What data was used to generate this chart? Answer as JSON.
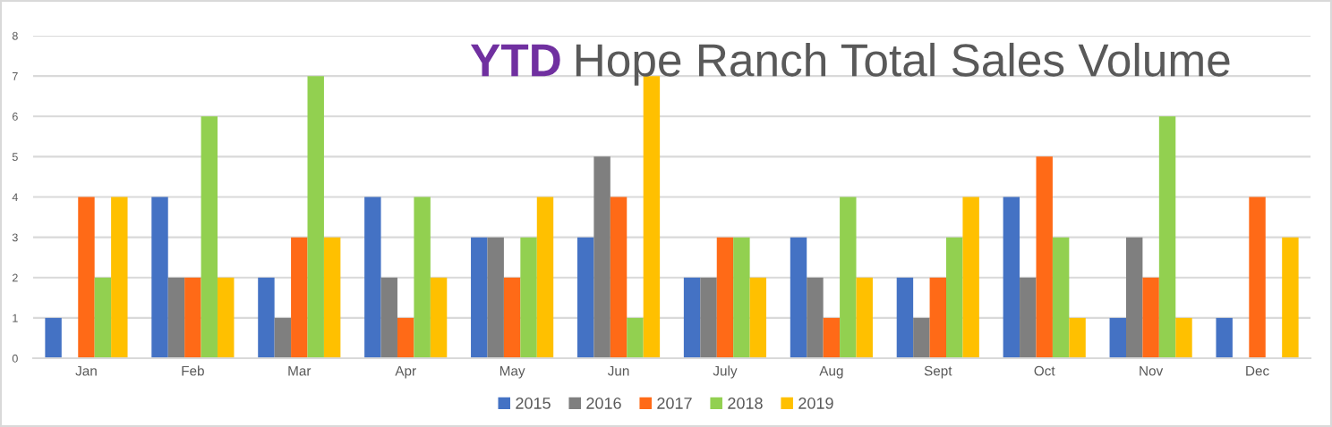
{
  "chart_data": {
    "type": "bar",
    "title": "YTD Hope Ranch Total Sales Volume",
    "categories": [
      "Jan",
      "Feb",
      "Mar",
      "Apr",
      "May",
      "Jun",
      "July",
      "Aug",
      "Sept",
      "Oct",
      "Nov",
      "Dec"
    ],
    "series": [
      {
        "name": "2015",
        "color": "#4472c4",
        "values": [
          1,
          4,
          2,
          4,
          3,
          3,
          2,
          3,
          2,
          4,
          1,
          1
        ]
      },
      {
        "name": "2016",
        "color": "#7f7f7f",
        "values": [
          0,
          2,
          1,
          2,
          3,
          5,
          2,
          2,
          1,
          2,
          3,
          0
        ]
      },
      {
        "name": "2017",
        "color": "#ff6a17",
        "values": [
          4,
          2,
          3,
          1,
          2,
          4,
          3,
          1,
          2,
          5,
          2,
          4
        ]
      },
      {
        "name": "2018",
        "color": "#92d050",
        "values": [
          2,
          6,
          7,
          4,
          3,
          1,
          3,
          4,
          3,
          3,
          6,
          0
        ]
      },
      {
        "name": "2019",
        "color": "#ffc000",
        "values": [
          4,
          2,
          3,
          2,
          4,
          7,
          2,
          2,
          4,
          1,
          1,
          3
        ]
      }
    ],
    "ylim": [
      0,
      8
    ],
    "yticks": [
      0,
      1,
      2,
      3,
      4,
      5,
      6,
      7,
      8
    ],
    "grid": "y",
    "legend": "bottom"
  }
}
